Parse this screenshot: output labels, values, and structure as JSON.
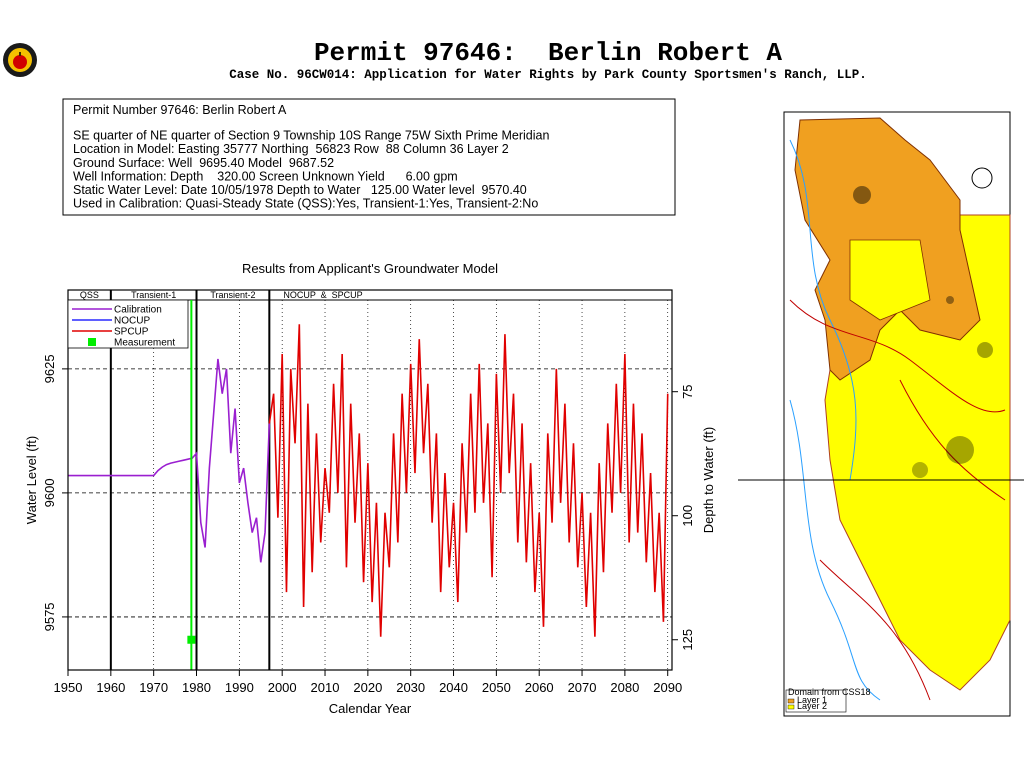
{
  "header": {
    "title": "Permit 97646:  Berlin Robert A",
    "subtitle": "Case No. 96CW014: Application for Water Rights by Park County Sportsmen's Ranch, LLP."
  },
  "info": {
    "lines": [
      "Permit Number 97646: Berlin Robert A",
      "SE quarter of NE quarter of Section 9 Township 10S Range 75W Sixth Prime Meridian",
      "Location in Model: Easting 35777 Northing  56823 Row  88 Column 36 Layer 2",
      "Ground Surface: Well  9695.40 Model  9687.52",
      "Well Information: Depth    320.00 Screen Unknown Yield      6.00 gpm",
      "Static Water Level: Date 10/05/1978 Depth to Water   125.00 Water level  9570.40",
      "Used in Calibration: Quasi-Steady State (QSS):Yes, Transient-1:Yes, Transient-2:No"
    ]
  },
  "map": {
    "legend_title": "Domain from CSS18",
    "legend": [
      "Layer 1",
      "Layer 2"
    ]
  },
  "chart_data": {
    "type": "line",
    "title": "Results from Applicant's Groundwater Model",
    "x_label": "Calendar Year",
    "y_label": "Water Level (ft)",
    "y2_label": "Depth to Water (ft)",
    "xlim": [
      1950,
      2091
    ],
    "xticks": [
      1950,
      1960,
      1970,
      1980,
      1990,
      2000,
      2010,
      2020,
      2030,
      2040,
      2050,
      2060,
      2070,
      2080,
      2090
    ],
    "ylim": [
      9564.3,
      9640.9
    ],
    "yticks": [
      9575,
      9600,
      9625
    ],
    "y2lim": [
      131.1,
      54.5
    ],
    "y2ticks": [
      75,
      100,
      125
    ],
    "grid": true,
    "periods": [
      {
        "label": "QSS",
        "start": 1950
      },
      {
        "label": "Transient-1",
        "start": 1960
      },
      {
        "label": "Transient-2",
        "start": 1980
      },
      {
        "label": "NOCUP  &  SPCUP",
        "start": 1997
      }
    ],
    "series": [
      {
        "name": "Calibration",
        "color": "#9a1fd0",
        "x": [
          1950,
          1951,
          1952,
          1953,
          1954,
          1955,
          1956,
          1957,
          1958,
          1959,
          1960,
          1961,
          1962,
          1963,
          1964,
          1965,
          1966,
          1967,
          1968,
          1969,
          1970,
          1971,
          1972,
          1973,
          1974,
          1975,
          1976,
          1977,
          1978,
          1979,
          1980,
          1981,
          1982,
          1983,
          1984,
          1985,
          1986,
          1987,
          1988,
          1989,
          1990,
          1991,
          1992,
          1993,
          1994,
          1995,
          1996,
          1997
        ],
        "values": [
          9603.5,
          9603.5,
          9603.5,
          9603.5,
          9603.5,
          9603.5,
          9603.5,
          9603.5,
          9603.5,
          9603.5,
          9603.5,
          9603.5,
          9603.5,
          9603.5,
          9603.5,
          9603.5,
          9603.5,
          9603.5,
          9603.5,
          9603.5,
          9603.5,
          9604.5,
          9605.2,
          9605.7,
          9606,
          9606.2,
          9606.4,
          9606.6,
          9606.8,
          9607,
          9608,
          9594,
          9589,
          9605,
          9616,
          9627,
          9620,
          9625,
          9608,
          9617,
          9602,
          9605,
          9598,
          9592,
          9595,
          9586,
          9592,
          9614
        ]
      },
      {
        "name": "NOCUP",
        "color": "#2a2aff"
      },
      {
        "name": "SPCUP",
        "color": "#e00000",
        "x": [
          1997,
          1998,
          1999,
          2000,
          2001,
          2002,
          2003,
          2004,
          2005,
          2006,
          2007,
          2008,
          2009,
          2010,
          2011,
          2012,
          2013,
          2014,
          2015,
          2016,
          2017,
          2018,
          2019,
          2020,
          2021,
          2022,
          2023,
          2024,
          2025,
          2026,
          2027,
          2028,
          2029,
          2030,
          2031,
          2032,
          2033,
          2034,
          2035,
          2036,
          2037,
          2038,
          2039,
          2040,
          2041,
          2042,
          2043,
          2044,
          2045,
          2046,
          2047,
          2048,
          2049,
          2050,
          2051,
          2052,
          2053,
          2054,
          2055,
          2056,
          2057,
          2058,
          2059,
          2060,
          2061,
          2062,
          2063,
          2064,
          2065,
          2066,
          2067,
          2068,
          2069,
          2070,
          2071,
          2072,
          2073,
          2074,
          2075,
          2076,
          2077,
          2078,
          2079,
          2080,
          2081,
          2082,
          2083,
          2084,
          2085,
          2086,
          2087,
          2088,
          2089,
          2090
        ],
        "values": [
          9614,
          9620,
          9595,
          9628,
          9580,
          9625,
          9610,
          9634,
          9577,
          9618,
          9584,
          9612,
          9590,
          9605,
          9596,
          9622,
          9600,
          9628,
          9585,
          9618,
          9594,
          9612,
          9582,
          9606,
          9578,
          9598,
          9571,
          9596,
          9585,
          9612,
          9590,
          9620,
          9600,
          9626,
          9604,
          9631,
          9608,
          9622,
          9594,
          9612,
          9580,
          9604,
          9585,
          9598,
          9578,
          9610,
          9592,
          9620,
          9596,
          9626,
          9598,
          9614,
          9583,
          9624,
          9600,
          9632,
          9604,
          9620,
          9590,
          9614,
          9586,
          9606,
          9580,
          9596,
          9573,
          9612,
          9594,
          9625,
          9598,
          9618,
          9590,
          9610,
          9585,
          9600,
          9577,
          9596,
          9571,
          9606,
          9584,
          9614,
          9596,
          9622,
          9600,
          9628,
          9590,
          9618,
          9592,
          9612,
          9586,
          9604,
          9580,
          9596,
          9574,
          9620
        ]
      },
      {
        "name": "Measurement",
        "color": "#00ee00",
        "x": [
          1978.8
        ],
        "values": [
          9570.4
        ]
      }
    ]
  }
}
